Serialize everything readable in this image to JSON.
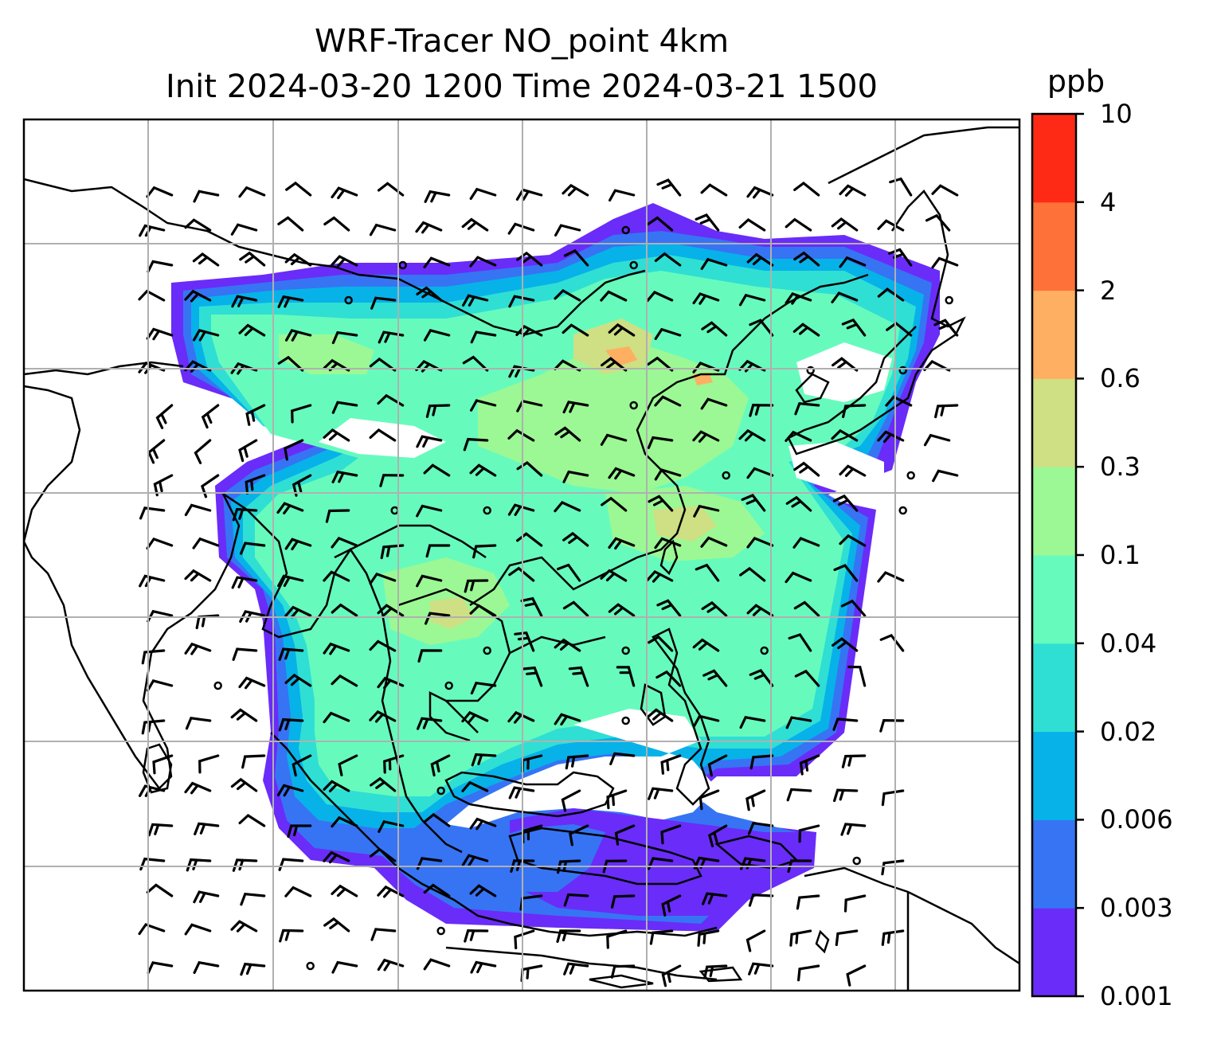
{
  "title": {
    "line1": "WRF-Tracer NO_point 4km",
    "line2": "Init 2024-03-20 1200 Time 2024-03-21 1500"
  },
  "colorbar": {
    "unit": "ppb",
    "ticks": [
      "0.001",
      "0.003",
      "0.006",
      "0.02",
      "0.04",
      "0.1",
      "0.3",
      "0.6",
      "2",
      "4",
      "10"
    ],
    "colors": [
      "#6a2cf8",
      "#3674f4",
      "#07b2e9",
      "#2fdfd4",
      "#66fbbd",
      "#9cf894",
      "#cedf84",
      "#feaf62",
      "#fe7138",
      "#fe2a16"
    ]
  },
  "map": {
    "gridlines": true,
    "wind_barbs": true
  }
}
